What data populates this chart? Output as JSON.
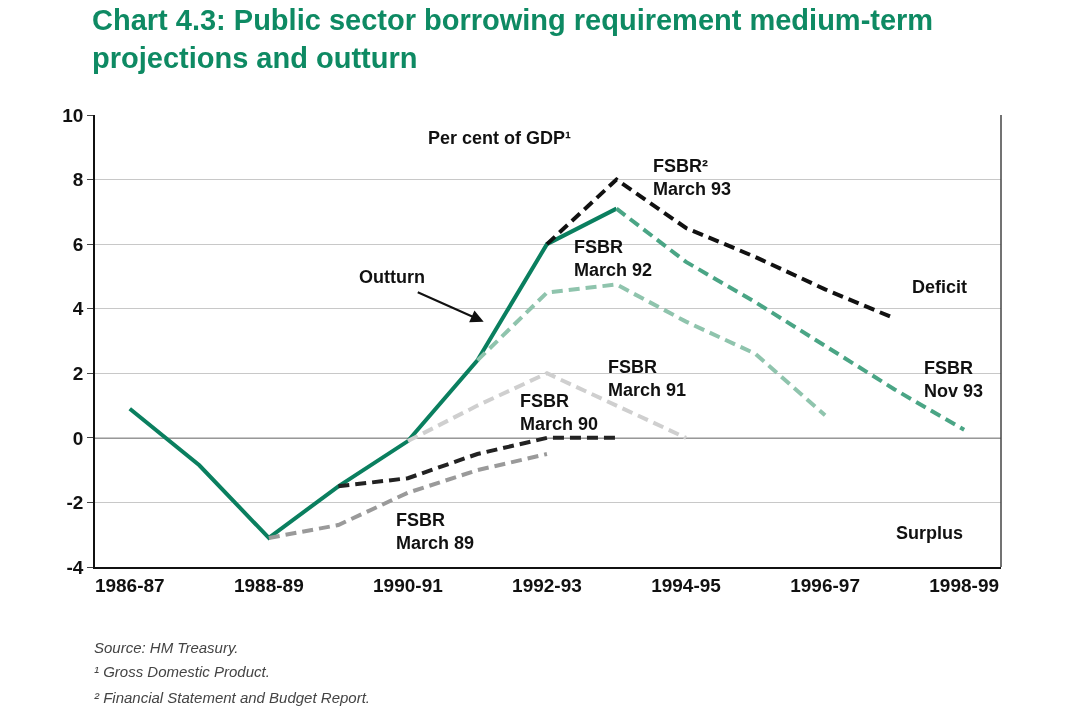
{
  "chart_data": {
    "type": "line",
    "title": "Chart 4.3: Public sector borrowing requirement medium-term\nprojections and outturn",
    "ylabel": "Per cent of GDP¹",
    "categories": [
      "1986-87",
      null,
      "1988-89",
      null,
      "1990-91",
      null,
      "1992-93",
      null,
      "1994-95",
      null,
      "1996-97",
      null,
      "1998-99"
    ],
    "ylim": [
      -4,
      10
    ],
    "yticks": [
      -4,
      -2,
      0,
      2,
      4,
      6,
      8,
      10
    ],
    "grid": "y",
    "marker": "none",
    "ref_lines": [
      {
        "axis": "y",
        "value": 0,
        "color": "#333333"
      }
    ],
    "series": [
      {
        "color": "#0a7f5f",
        "line_style": "solid",
        "values": [
          0.9,
          -0.85,
          -3.1,
          -1.5,
          -0.1,
          2.4,
          6.0,
          7.1,
          null,
          null,
          null,
          null,
          null
        ]
      },
      {
        "color": "#9a9a9a",
        "line_style": "dashed",
        "values": [
          null,
          null,
          -3.1,
          -2.7,
          -1.7,
          -1.0,
          -0.5,
          null,
          null,
          null,
          null,
          null,
          null
        ]
      },
      {
        "color": "#222222",
        "line_style": "dashed",
        "values": [
          null,
          null,
          null,
          -1.5,
          -1.25,
          -0.5,
          0.0,
          0.0,
          null,
          null,
          null,
          null,
          null
        ]
      },
      {
        "color": "#cfcfcf",
        "line_style": "dashed",
        "values": [
          null,
          null,
          null,
          null,
          -0.1,
          1.0,
          2.0,
          1.0,
          0.0,
          null,
          null,
          null,
          null
        ]
      },
      {
        "color": "#8fc4ad",
        "line_style": "dashed",
        "values": [
          null,
          null,
          null,
          null,
          null,
          2.4,
          4.5,
          4.75,
          3.6,
          2.6,
          0.7,
          null,
          null
        ]
      },
      {
        "color": "#111111",
        "line_style": "dashed",
        "values": [
          null,
          null,
          null,
          null,
          null,
          null,
          6.0,
          8.0,
          6.5,
          5.6,
          4.6,
          3.7,
          null
        ]
      },
      {
        "color": "#4aa585",
        "line_style": "dashed",
        "values": [
          null,
          null,
          null,
          null,
          null,
          null,
          null,
          7.1,
          5.45,
          4.2,
          2.85,
          1.5,
          0.25
        ]
      }
    ],
    "annotations": [
      "Outturn",
      "FSBR\nMarch 89",
      "FSBR\nMarch 90",
      "FSBR\nMarch 91",
      "FSBR\nMarch 92",
      "FSBR²\nMarch 93",
      "FSBR\nNov 93",
      "Deficit",
      "Surplus",
      "Source: HM Treasury.",
      "¹ Gross Domestic Product.",
      "² Financial Statement and Budget Report."
    ]
  }
}
